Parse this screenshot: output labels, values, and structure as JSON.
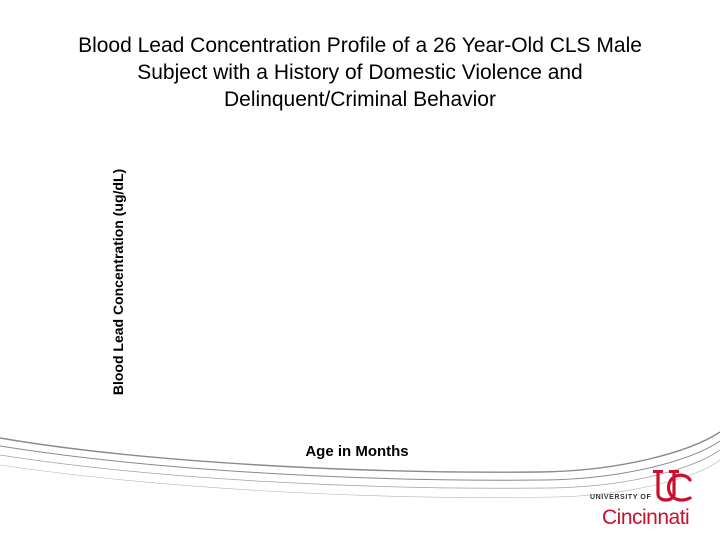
{
  "chart_data": {
    "type": "line",
    "title": "Blood Lead Concentration Profile of a 26 Year-Old CLS Male Subject with a History of Domestic Violence and Delinquent/Criminal Behavior",
    "title_lines": [
      "Blood Lead Concentration Profile of a 26 Year-Old CLS Male",
      "Subject with a History of Domestic Violence and",
      "Delinquent/Criminal Behavior"
    ],
    "xlabel": "Age in Months",
    "ylabel": "Blood Lead Concentration (ug/dL)",
    "series": []
  },
  "logo": {
    "top_text": "UNIVERSITY OF",
    "name": "Cincinnati",
    "brand_color": "#c8102e",
    "icon": "uc-monogram-logo"
  },
  "colors": {
    "swoosh": "#8a8a8a",
    "accent": "#c8102e"
  }
}
